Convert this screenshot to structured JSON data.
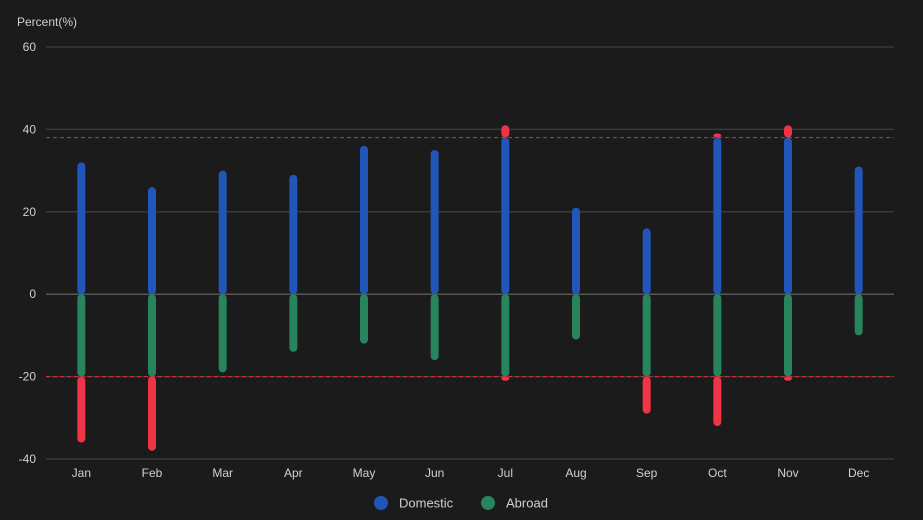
{
  "chart_data": {
    "type": "bar",
    "ylabel": "Percent(%)",
    "ylim": [
      -40,
      60
    ],
    "yticks": [
      60,
      40,
      20,
      0,
      -20,
      -40
    ],
    "categories": [
      "Jan",
      "Feb",
      "Mar",
      "Apr",
      "May",
      "Jun",
      "Jul",
      "Aug",
      "Sep",
      "Oct",
      "Nov",
      "Dec"
    ],
    "series": [
      {
        "name": "Domestic",
        "color": "#2155b8",
        "values": [
          32,
          26,
          30,
          29,
          36,
          35,
          41,
          21,
          16,
          39,
          41,
          31
        ]
      },
      {
        "name": "Abroad",
        "color": "#27845c",
        "values": [
          -36,
          -38,
          -19,
          -14,
          -12,
          -16,
          -21,
          -11,
          -29,
          -32,
          -21,
          -10
        ]
      }
    ],
    "thresholds": [
      {
        "value": 38,
        "color": "#e22d3e"
      },
      {
        "value": -20,
        "color": "#e22d3e"
      }
    ],
    "exceed_color": "#f03448",
    "grid": true,
    "legend_position": "bottom-center"
  }
}
